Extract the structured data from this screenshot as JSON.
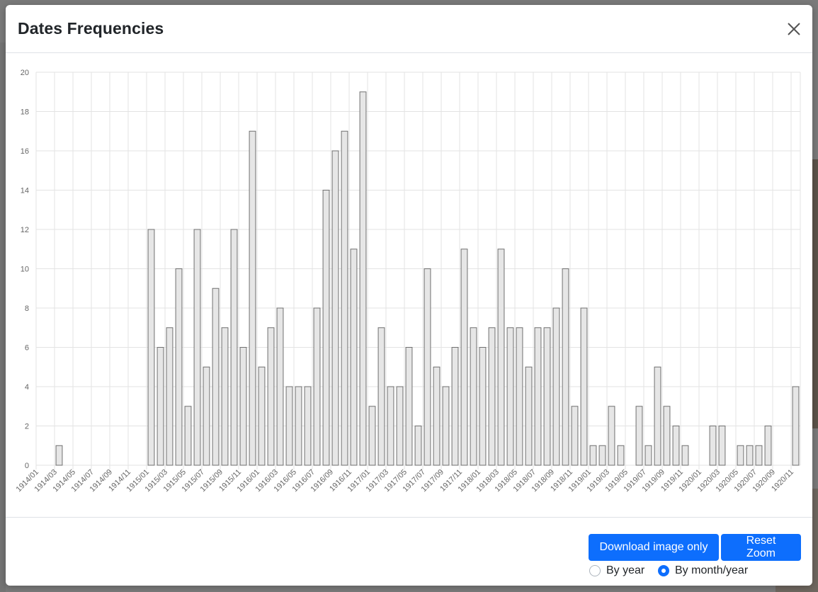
{
  "modal": {
    "title": "Dates Frequencies",
    "close_icon": "close-icon"
  },
  "footer": {
    "download_label": "Download image only",
    "reset_label": "Reset Zoom",
    "radio_year_label": "By year",
    "radio_month_label": "By month/year",
    "selected_mode": "By month/year"
  },
  "colors": {
    "bar_fill": "#e6e6e6",
    "bar_stroke": "#707070",
    "grid": "#e3e3e3",
    "accent": "#0d6efd"
  },
  "chart_data": {
    "type": "bar",
    "title": "",
    "xlabel": "",
    "ylabel": "",
    "ylim": [
      0,
      20
    ],
    "yticks": [
      0,
      2,
      4,
      6,
      8,
      10,
      12,
      14,
      16,
      18,
      20
    ],
    "grid": true,
    "categories": [
      "1914/01",
      "1914/02",
      "1914/03",
      "1914/04",
      "1914/05",
      "1914/06",
      "1914/07",
      "1914/08",
      "1914/09",
      "1914/10",
      "1914/11",
      "1914/12",
      "1915/01",
      "1915/02",
      "1915/03",
      "1915/04",
      "1915/05",
      "1915/06",
      "1915/07",
      "1915/08",
      "1915/09",
      "1915/10",
      "1915/11",
      "1915/12",
      "1916/01",
      "1916/02",
      "1916/03",
      "1916/04",
      "1916/05",
      "1916/06",
      "1916/07",
      "1916/08",
      "1916/09",
      "1916/10",
      "1916/11",
      "1916/12",
      "1917/01",
      "1917/02",
      "1917/03",
      "1917/04",
      "1917/05",
      "1917/06",
      "1917/07",
      "1917/08",
      "1917/09",
      "1917/10",
      "1917/11",
      "1917/12",
      "1918/01",
      "1918/02",
      "1918/03",
      "1918/04",
      "1918/05",
      "1918/06",
      "1918/07",
      "1918/08",
      "1918/09",
      "1918/10",
      "1918/11",
      "1918/12",
      "1919/01",
      "1919/02",
      "1919/03",
      "1919/04",
      "1919/05",
      "1919/06",
      "1919/07",
      "1919/08",
      "1919/09",
      "1919/10",
      "1919/11",
      "1919/12",
      "1920/01",
      "1920/02",
      "1920/03",
      "1920/04",
      "1920/05",
      "1920/06",
      "1920/07",
      "1920/08",
      "1920/09",
      "1920/10",
      "1920/11"
    ],
    "tick_labels": [
      "1914/01",
      "1914/03",
      "1914/05",
      "1914/07",
      "1914/09",
      "1914/11",
      "1915/01",
      "1915/03",
      "1915/05",
      "1915/07",
      "1915/09",
      "1915/11",
      "1916/01",
      "1916/03",
      "1916/05",
      "1916/07",
      "1916/09",
      "1916/11",
      "1917/01",
      "1917/03",
      "1917/05",
      "1917/07",
      "1917/09",
      "1917/11",
      "1918/01",
      "1918/03",
      "1918/05",
      "1918/07",
      "1918/09",
      "1918/11",
      "1919/01",
      "1919/03",
      "1919/05",
      "1919/07",
      "1919/09",
      "1919/11",
      "1920/01",
      "1920/03",
      "1920/05",
      "1920/07",
      "1920/09",
      "1920/11"
    ],
    "values": [
      0,
      0,
      1,
      0,
      0,
      0,
      0,
      0,
      0,
      0,
      0,
      0,
      12,
      6,
      7,
      10,
      3,
      12,
      5,
      9,
      7,
      12,
      6,
      17,
      5,
      7,
      8,
      4,
      4,
      4,
      8,
      14,
      16,
      17,
      11,
      19,
      3,
      7,
      4,
      4,
      6,
      2,
      10,
      5,
      4,
      6,
      11,
      7,
      6,
      7,
      11,
      7,
      7,
      5,
      7,
      7,
      8,
      10,
      3,
      8,
      1,
      1,
      3,
      1,
      0,
      3,
      1,
      5,
      3,
      2,
      1,
      0,
      0,
      2,
      2,
      0,
      1,
      1,
      1,
      2,
      0,
      0,
      4
    ]
  }
}
